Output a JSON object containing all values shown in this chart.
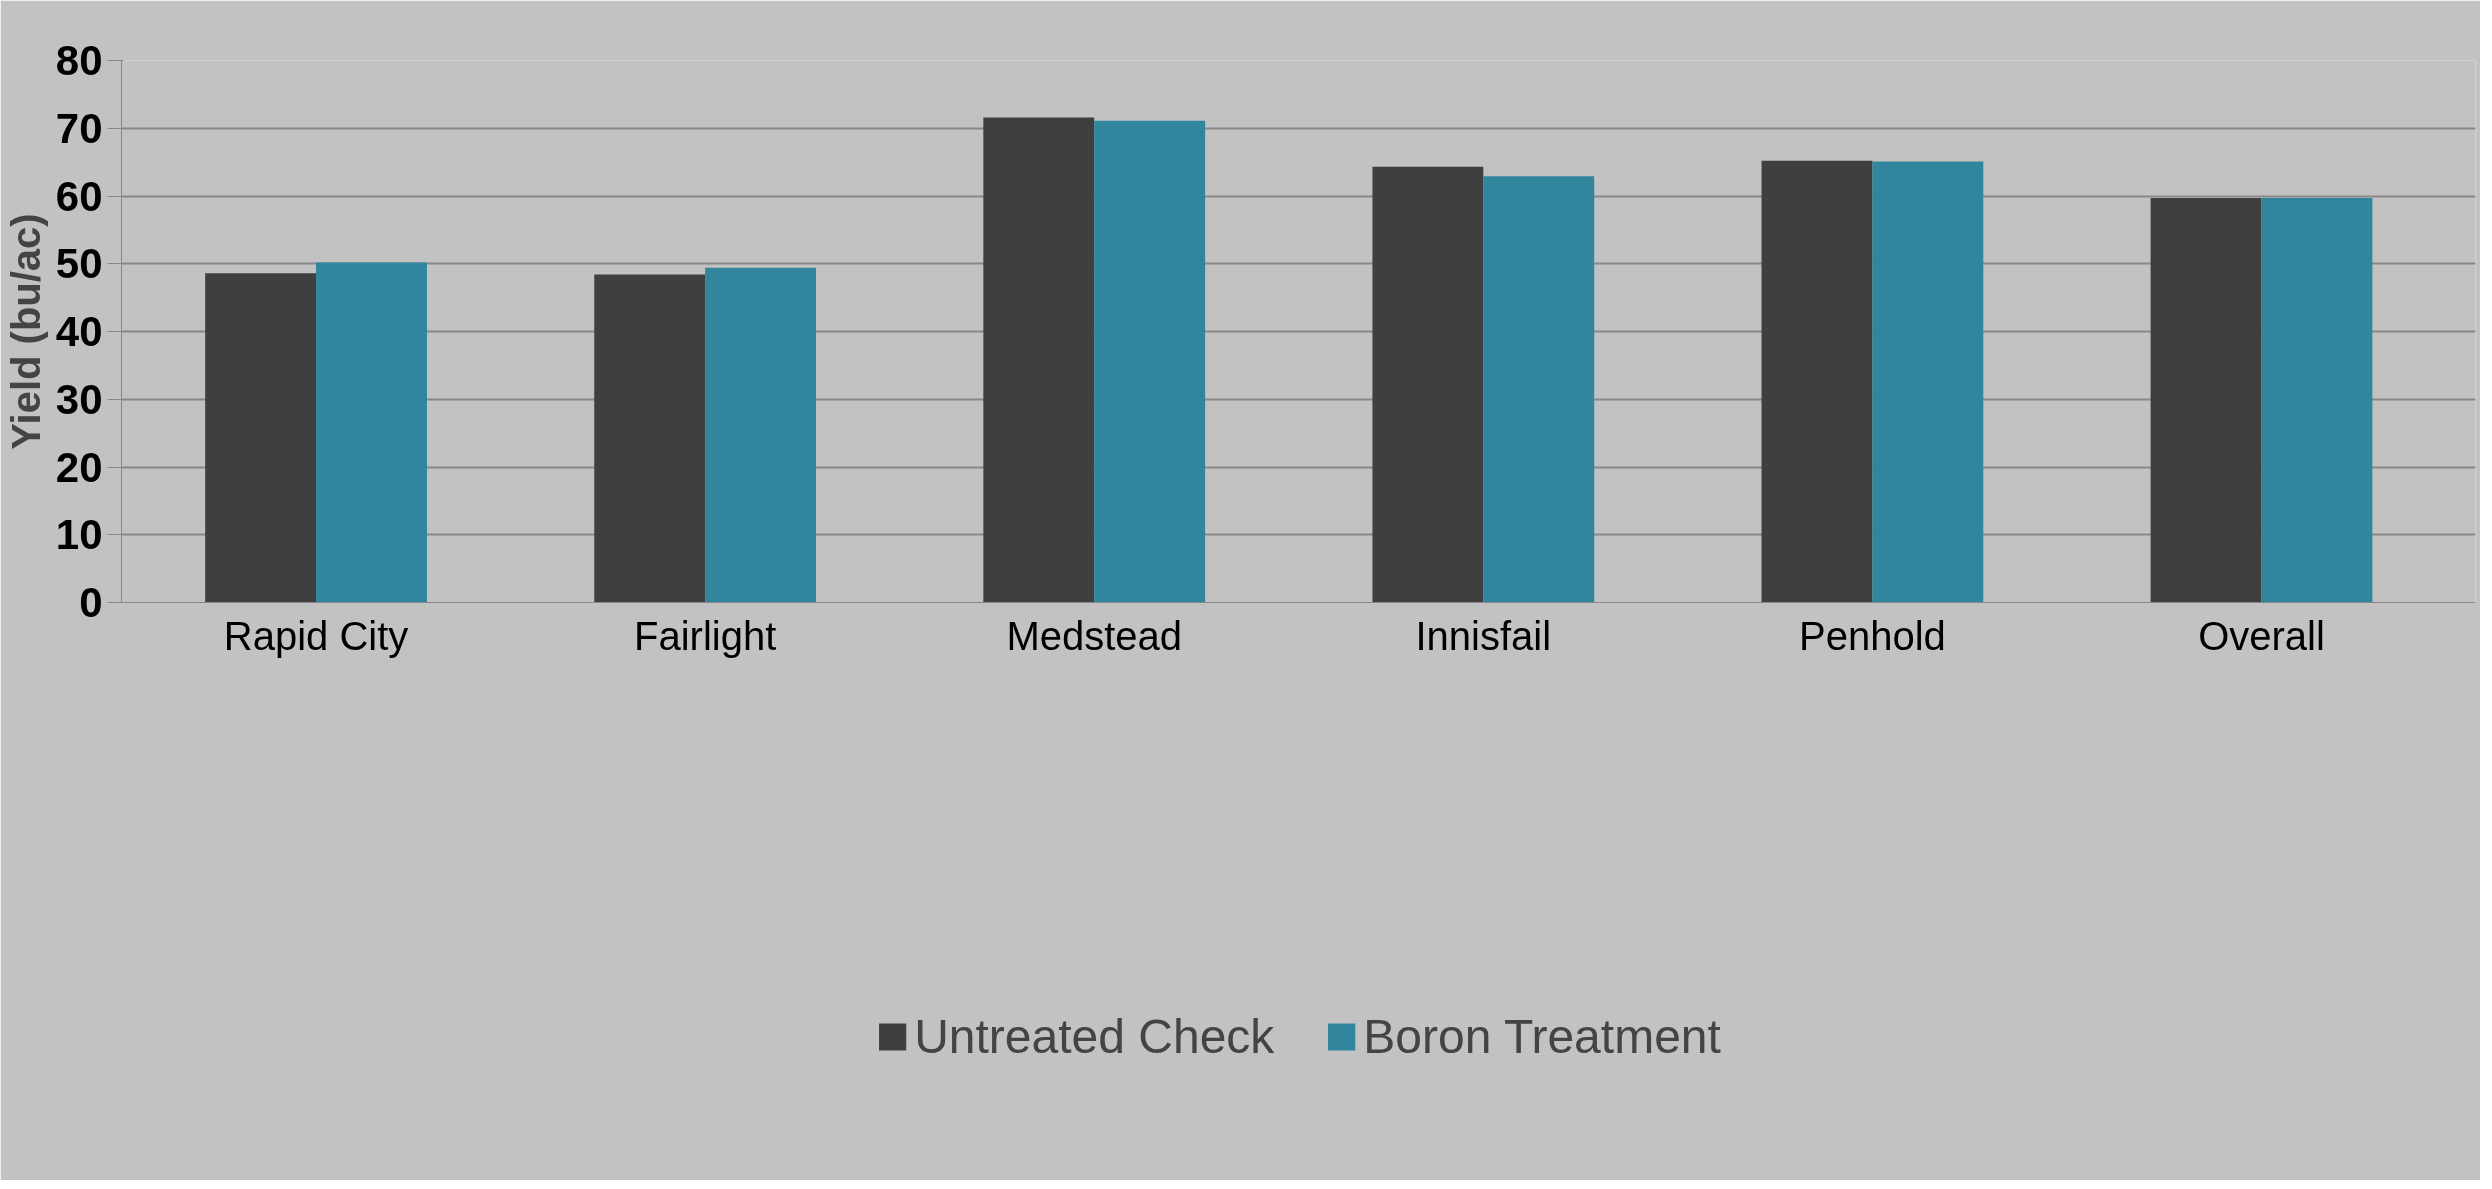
{
  "chart_data": {
    "type": "bar",
    "ylabel": "Yield (bu/ac)",
    "categories": [
      "Rapid City",
      "Fairlight",
      "Medstead",
      "Innisfail",
      "Penhold",
      "Overall"
    ],
    "series": [
      {
        "name": "Untreated Check",
        "color": "#3f3f3f",
        "values": [
          48.6,
          48.4,
          71.6,
          64.3,
          65.2,
          59.7
        ]
      },
      {
        "name": "Boron Treatment",
        "color": "#31859c",
        "values": [
          50.2,
          49.4,
          71.1,
          62.9,
          65.1,
          59.7
        ]
      }
    ],
    "ylim": [
      0,
      80
    ],
    "yticks": [
      0,
      10,
      20,
      30,
      40,
      50,
      60,
      70,
      80
    ],
    "grid": "y",
    "legend": "bottom"
  }
}
